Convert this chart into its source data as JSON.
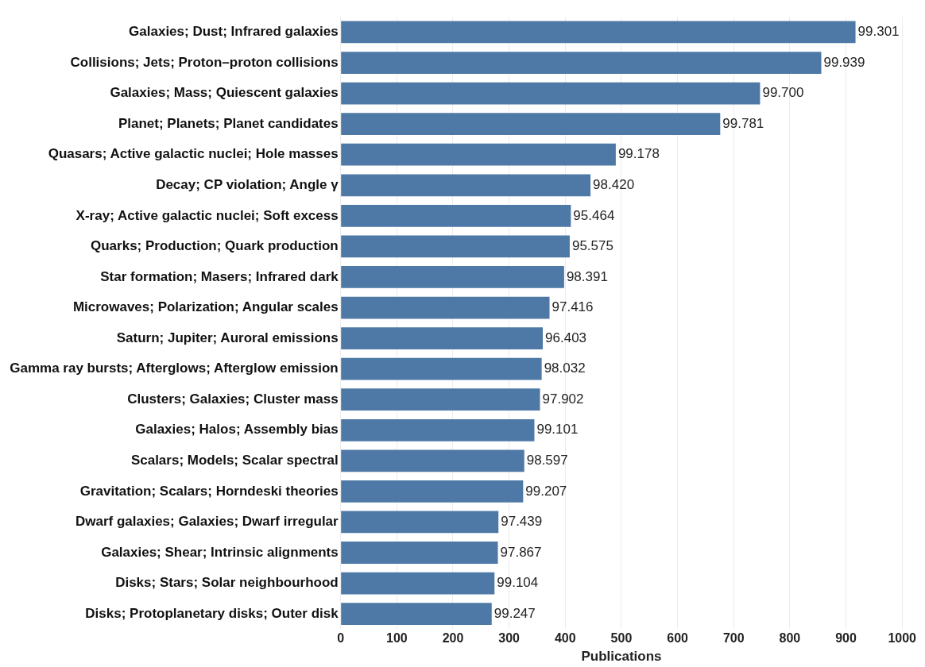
{
  "chart_data": {
    "type": "bar",
    "orientation": "horizontal",
    "xlabel": "Publications",
    "categories": [
      "Galaxies; Dust; Infrared galaxies",
      "Collisions; Jets; Proton–proton collisions",
      "Galaxies; Mass; Quiescent galaxies",
      "Planet; Planets; Planet candidates",
      "Quasars; Active galactic nuclei; Hole masses",
      "Decay; CP violation; Angle γ",
      "X-ray; Active galactic nuclei; Soft excess",
      "Quarks; Production; Quark production",
      "Star formation; Masers; Infrared dark",
      "Microwaves; Polarization; Angular scales",
      "Saturn; Jupiter; Auroral emissions",
      "Gamma ray bursts; Afterglows; Afterglow emission",
      "Clusters; Galaxies; Cluster mass",
      "Galaxies; Halos; Assembly bias",
      "Scalars; Models; Scalar spectral",
      "Gravitation; Scalars; Horndeski theories",
      "Dwarf galaxies; Galaxies; Dwarf irregular",
      "Galaxies; Shear; Intrinsic alignments",
      "Disks; Stars; Solar neighbourhood",
      "Disks; Protoplanetary disks; Outer disk"
    ],
    "values": [
      917,
      856,
      747,
      676,
      490,
      445,
      410,
      408,
      398,
      372,
      360,
      358,
      355,
      345,
      327,
      325,
      281,
      280,
      274,
      269
    ],
    "annotations": [
      {
        "text": "99.301",
        "x": 917,
        "y": "Galaxies; Dust; Infrared galaxies"
      },
      {
        "text": "99.939",
        "x": 856,
        "y": "Collisions; Jets; Proton–proton collisions"
      },
      {
        "text": "99.700",
        "x": 747,
        "y": "Galaxies; Mass; Quiescent galaxies"
      },
      {
        "text": "99.781",
        "x": 676,
        "y": "Planet; Planets; Planet candidates"
      },
      {
        "text": "99.178",
        "x": 490,
        "y": "Quasars; Active galactic nuclei; Hole masses"
      },
      {
        "text": "98.420",
        "x": 445,
        "y": "Decay; CP violation; Angle γ"
      },
      {
        "text": "95.464",
        "x": 410,
        "y": "X-ray; Active galactic nuclei; Soft excess"
      },
      {
        "text": "95.575",
        "x": 408,
        "y": "Quarks; Production; Quark production"
      },
      {
        "text": "98.391",
        "x": 398,
        "y": "Star formation; Masers; Infrared dark"
      },
      {
        "text": "97.416",
        "x": 372,
        "y": "Microwaves; Polarization; Angular scales"
      },
      {
        "text": "96.403",
        "x": 360,
        "y": "Saturn; Jupiter; Auroral emissions"
      },
      {
        "text": "98.032",
        "x": 358,
        "y": "Gamma ray bursts; Afterglows; Afterglow emission"
      },
      {
        "text": "97.902",
        "x": 355,
        "y": "Clusters; Galaxies; Cluster mass"
      },
      {
        "text": "99.101",
        "x": 345,
        "y": "Galaxies; Halos; Assembly bias"
      },
      {
        "text": "98.597",
        "x": 327,
        "y": "Scalars; Models; Scalar spectral"
      },
      {
        "text": "99.207",
        "x": 325,
        "y": "Gravitation; Scalars; Horndeski theories"
      },
      {
        "text": "97.439",
        "x": 281,
        "y": "Dwarf galaxies; Galaxies; Dwarf irregular"
      },
      {
        "text": "97.867",
        "x": 280,
        "y": "Galaxies; Shear; Intrinsic alignments"
      },
      {
        "text": "99.104",
        "x": 274,
        "y": "Disks; Stars; Solar neighbourhood"
      },
      {
        "text": "99.247",
        "x": 269,
        "y": "Disks; Protoplanetary disks; Outer disk"
      }
    ],
    "color": "#4e79a7",
    "xlim": [
      0,
      1000
    ],
    "xticks": [
      0,
      100,
      200,
      300,
      400,
      500,
      600,
      700,
      800,
      900,
      1000
    ],
    "grid": "x",
    "legend": false
  }
}
